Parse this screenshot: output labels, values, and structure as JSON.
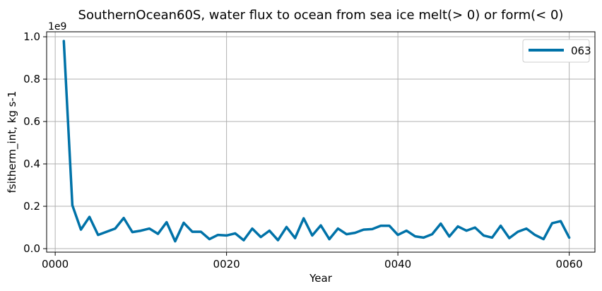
{
  "chart_data": {
    "type": "line",
    "title": "SouthernOcean60S, water flux to ocean from sea ice melt(> 0) or form(< 0)",
    "xlabel": "Year",
    "ylabel": "fsitherm_int, kg s-1",
    "y_offset_label": "1e9",
    "xlim": [
      -1,
      63
    ],
    "ylim": [
      -0.0165,
      1.0235
    ],
    "x_ticks": [
      0,
      20,
      40,
      60
    ],
    "x_tick_labels": [
      "0000",
      "0020",
      "0040",
      "0060"
    ],
    "y_ticks": [
      0.0,
      0.2,
      0.4,
      0.6,
      0.8,
      1.0
    ],
    "y_tick_labels": [
      "0.0",
      "0.2",
      "0.4",
      "0.6",
      "0.8",
      "1.0"
    ],
    "grid": true,
    "legend_position": "top-right",
    "series": [
      {
        "name": "063",
        "color": "#0072a8",
        "x": [
          1,
          2,
          3,
          4,
          5,
          6,
          7,
          8,
          9,
          10,
          11,
          12,
          13,
          14,
          15,
          16,
          17,
          18,
          19,
          20,
          21,
          22,
          23,
          24,
          25,
          26,
          27,
          28,
          29,
          30,
          31,
          32,
          33,
          34,
          35,
          36,
          37,
          38,
          39,
          40,
          41,
          42,
          43,
          44,
          45,
          46,
          47,
          48,
          49,
          50,
          51,
          52,
          53,
          54,
          55,
          56,
          57,
          58,
          59,
          60
        ],
        "values": [
          0.98,
          0.205,
          0.09,
          0.15,
          0.065,
          0.08,
          0.095,
          0.145,
          0.078,
          0.085,
          0.095,
          0.07,
          0.125,
          0.035,
          0.122,
          0.08,
          0.08,
          0.045,
          0.065,
          0.062,
          0.072,
          0.04,
          0.095,
          0.055,
          0.085,
          0.04,
          0.102,
          0.05,
          0.143,
          0.062,
          0.11,
          0.045,
          0.095,
          0.068,
          0.075,
          0.09,
          0.092,
          0.108,
          0.108,
          0.065,
          0.085,
          0.058,
          0.052,
          0.068,
          0.118,
          0.057,
          0.105,
          0.085,
          0.1,
          0.062,
          0.052,
          0.108,
          0.05,
          0.08,
          0.095,
          0.065,
          0.045,
          0.12,
          0.13,
          0.052
        ]
      }
    ]
  }
}
